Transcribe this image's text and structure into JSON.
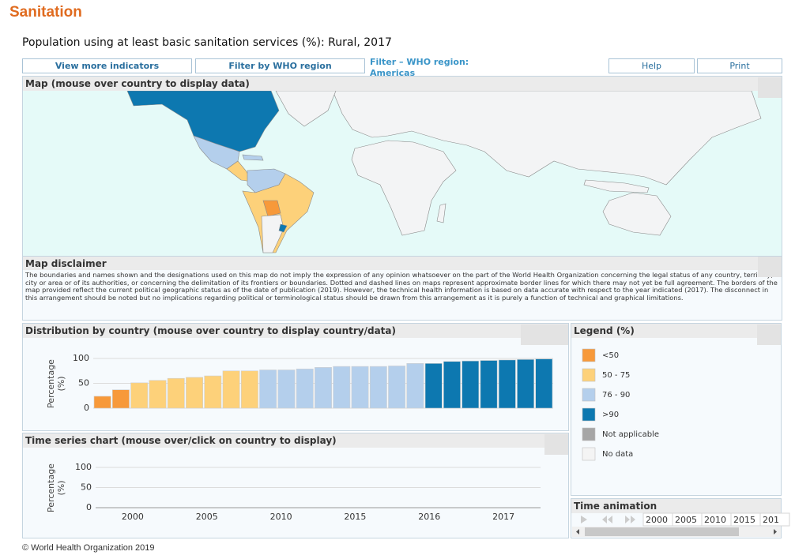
{
  "header": {
    "title": "Sanitation",
    "subtitle": "Population using at least basic sanitation services (%): Rural, 2017"
  },
  "toolbar": {
    "buttons": [
      "View more indicators",
      "Filter by WHO region"
    ],
    "filter_label": "Filter – WHO region:",
    "filter_value": "Americas",
    "help": "Help",
    "print": "Print"
  },
  "map": {
    "title": "Map (mouse over country to display data)",
    "disclaimer_title": "Map disclaimer",
    "disclaimer": "The boundaries and names shown and the designations used on this map do not imply the expression of any opinion whatsoever on the part of the World Health Organization concerning the legal status of any country, territory, city or area or of its authorities, or concerning the delimitation of its frontiers or boundaries. Dotted and dashed lines on maps represent approximate border lines for which there may not yet be full agreement. The borders of the map provided reflect the current political geographic status as of the date of publication (2019). However, the technical health information is based on data accurate with respect to the year indicated (2017). The disconnect in this arrangement should be noted but no implications regarding political or terminological status should be drawn from this arrangement as it is purely a function of technical and graphical limitations."
  },
  "chart_data": [
    {
      "type": "bar",
      "title": "Distribution by country (mouse over country to display country/data)",
      "y_label_lines": [
        "Percentage",
        "(%)"
      ],
      "values": [
        24,
        37,
        51,
        56,
        60,
        62,
        65,
        75,
        75,
        77,
        77,
        79,
        82,
        84,
        84,
        84,
        85,
        90,
        90,
        94,
        95,
        96,
        97,
        98,
        99
      ],
      "colors": [
        "#f7993a",
        "#f7993a",
        "#fdd17a",
        "#fdd17a",
        "#fdd17a",
        "#fdd17a",
        "#fdd17a",
        "#fdd17a",
        "#fdd17a",
        "#b4cfec",
        "#b4cfec",
        "#b4cfec",
        "#b4cfec",
        "#b4cfec",
        "#b4cfec",
        "#b4cfec",
        "#b4cfec",
        "#b4cfec",
        "#0d78b0",
        "#0d78b0",
        "#0d78b0",
        "#0d78b0",
        "#0d78b0",
        "#0d78b0",
        "#0d78b0"
      ],
      "ylim": [
        0,
        100
      ],
      "yticks": [
        0,
        50,
        100
      ],
      "grid": true
    },
    {
      "type": "line",
      "title": "Time series chart (mouse over/click on country to display)",
      "y_label_lines": [
        "Percentage",
        "(%)"
      ],
      "categories": [
        "2000",
        "2005",
        "2010",
        "2015",
        "2016",
        "2017"
      ],
      "series": [],
      "ylim": [
        0,
        100
      ],
      "yticks": [
        0,
        50,
        100
      ],
      "grid": true
    }
  ],
  "legend": {
    "title": "Legend (%)",
    "items": [
      {
        "label": "<50",
        "color": "#f7993a"
      },
      {
        "label": "50 - 75",
        "color": "#fdd17a"
      },
      {
        "label": "76 - 90",
        "color": "#b4cfec"
      },
      {
        "label": ">90",
        "color": "#0d78b0"
      },
      {
        "label": "Not applicable",
        "color": "#a6a6a6"
      },
      {
        "label": "No data",
        "color": "#f4f4f4"
      }
    ]
  },
  "time_animation": {
    "title": "Time animation",
    "years": [
      "2000",
      "2005",
      "2010",
      "2015",
      "201"
    ]
  },
  "footer": "© World Health Organization 2019"
}
